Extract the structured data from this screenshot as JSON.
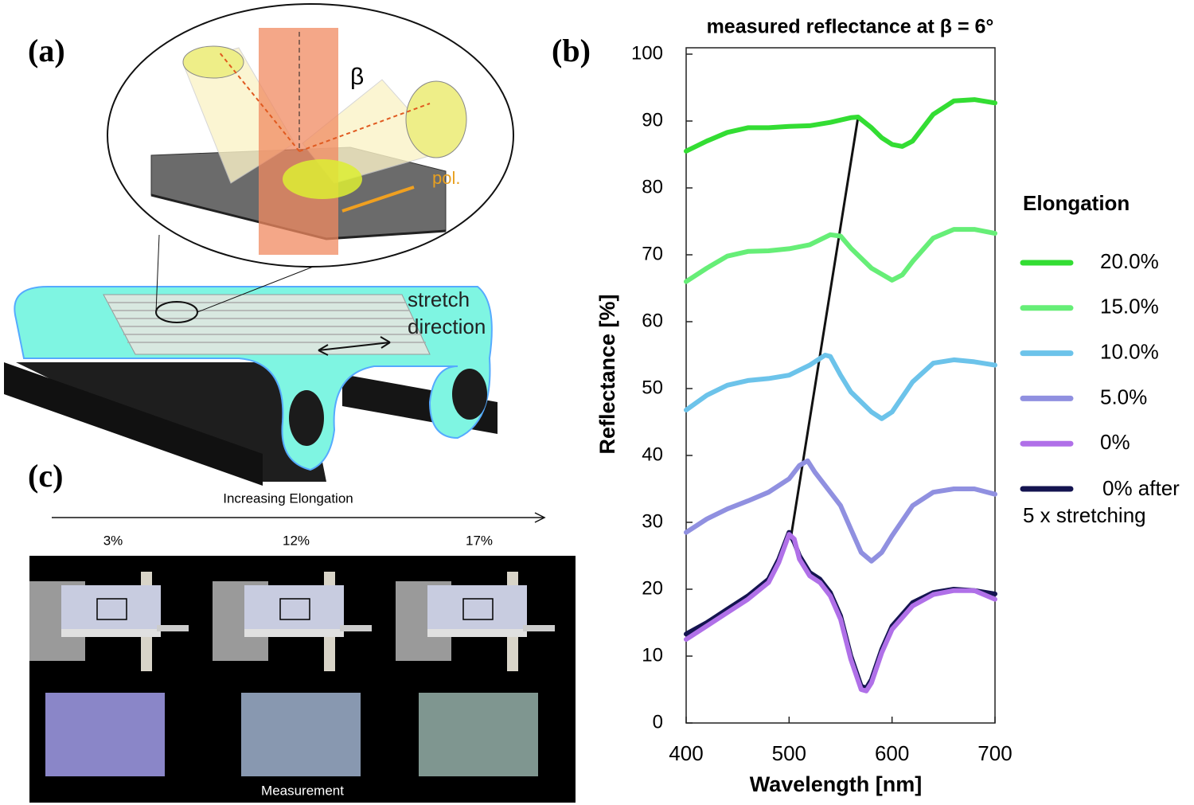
{
  "panels": {
    "a": {
      "label": "(a)",
      "beta": "β",
      "pol": "pol.",
      "stretch_1": "stretch",
      "stretch_2": "direction"
    },
    "b": {
      "label": "(b)"
    },
    "c": {
      "label": "(c)",
      "arrow_text": "Increasing Elongation",
      "steps": [
        "3%",
        "12%",
        "17%"
      ],
      "caption": "Measurement"
    }
  },
  "chart_data": {
    "type": "line",
    "title": "measured reflectance at β = 6°",
    "x_label": "Wavelength [nm]",
    "y_label": "Reflectance [%]",
    "legend_title": "Elongation",
    "legend": "right",
    "xlim": [
      400,
      700
    ],
    "xticks": [
      400,
      500,
      600,
      700
    ],
    "ylim": [
      0,
      100
    ],
    "yticks": [
      0,
      10,
      20,
      30,
      40,
      50,
      60,
      70,
      80,
      90,
      100
    ],
    "series": [
      {
        "name": "20.0%",
        "color": "#33dd33",
        "x": [
          400,
          420,
          440,
          460,
          480,
          500,
          520,
          540,
          560,
          567,
          580,
          590,
          600,
          610,
          620,
          640,
          660,
          680,
          700
        ],
        "values": [
          85.5,
          87,
          88.3,
          89,
          89,
          89.2,
          89.3,
          89.8,
          90.5,
          90.6,
          89,
          87.5,
          86.5,
          86.2,
          87,
          91,
          93,
          93.2,
          92.7
        ]
      },
      {
        "name": "15.0%",
        "color": "#66ee77",
        "x": [
          400,
          420,
          440,
          460,
          480,
          500,
          520,
          540,
          550,
          560,
          580,
          600,
          610,
          620,
          640,
          660,
          680,
          700
        ],
        "values": [
          66,
          68,
          69.8,
          70.5,
          70.6,
          70.9,
          71.5,
          73,
          72.8,
          71,
          68,
          66.2,
          67,
          69,
          72.5,
          73.8,
          73.8,
          73.2
        ]
      },
      {
        "name": "10.0%",
        "color": "#6cc3ea",
        "x": [
          400,
          420,
          440,
          460,
          480,
          500,
          520,
          535,
          540,
          550,
          560,
          580,
          590,
          600,
          620,
          640,
          660,
          680,
          700
        ],
        "values": [
          46.8,
          49,
          50.5,
          51.2,
          51.5,
          52,
          53.5,
          55,
          54.8,
          52,
          49.5,
          46.5,
          45.5,
          46.5,
          51,
          53.8,
          54.3,
          54,
          53.5
        ]
      },
      {
        "name": "5.0%",
        "color": "#9090e0",
        "x": [
          400,
          420,
          440,
          460,
          480,
          500,
          510,
          518,
          525,
          540,
          550,
          560,
          570,
          580,
          590,
          600,
          620,
          640,
          660,
          680,
          700
        ],
        "values": [
          28.5,
          30.5,
          32,
          33.2,
          34.5,
          36.5,
          38.5,
          39.2,
          37.5,
          34.5,
          32.5,
          29,
          25.5,
          24.2,
          25.5,
          28,
          32.5,
          34.5,
          35,
          35,
          34.2
        ]
      },
      {
        "name": "0%",
        "color": "#b070e8",
        "x": [
          400,
          420,
          440,
          460,
          480,
          490,
          500,
          505,
          510,
          520,
          530,
          540,
          550,
          560,
          570,
          575,
          580,
          590,
          600,
          620,
          640,
          660,
          680,
          700
        ],
        "values": [
          12.5,
          14.5,
          16.5,
          18.5,
          21,
          24,
          28.2,
          27.5,
          24.5,
          22,
          21,
          19,
          15.5,
          9.5,
          5,
          4.8,
          6,
          10.5,
          14,
          17.5,
          19.2,
          19.8,
          19.8,
          18.5
        ]
      },
      {
        "name": "0% after 5 x stretching",
        "color": "#141450",
        "x": [
          400,
          420,
          440,
          460,
          480,
          490,
          500,
          505,
          510,
          520,
          530,
          540,
          550,
          560,
          570,
          575,
          580,
          590,
          600,
          620,
          640,
          660,
          680,
          700
        ],
        "values": [
          13.3,
          15,
          17,
          19,
          21.5,
          24.5,
          28.5,
          27,
          25,
          22.5,
          21.5,
          19.5,
          16,
          10,
          5.5,
          5.2,
          6.5,
          11,
          14.5,
          18,
          19.5,
          20,
          19.8,
          19.3
        ]
      }
    ],
    "trend": {
      "color": "#111111",
      "x": [
        502,
        567
      ],
      "values": [
        28,
        90.6
      ]
    }
  }
}
